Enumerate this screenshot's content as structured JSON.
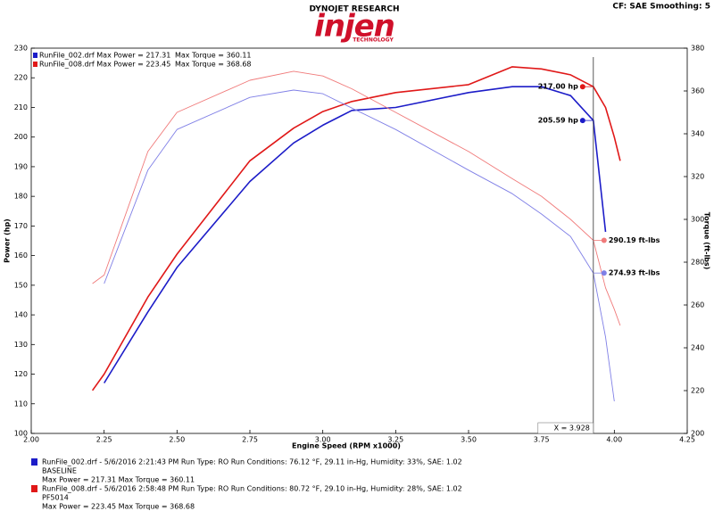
{
  "header": {
    "brand": "DYNOJET RESEARCH",
    "logo": "injen",
    "logo_sub": "TECHNOLOGY",
    "settings": "CF: SAE  Smoothing: 5"
  },
  "chart_data": {
    "type": "line",
    "xlabel": "Engine Speed (RPM x1000)",
    "ylabel": "Power (hp)",
    "y2label": "Torque (ft-lbs)",
    "x": [
      2.21,
      2.25,
      2.4,
      2.5,
      2.75,
      2.9,
      3.0,
      3.1,
      3.25,
      3.5,
      3.65,
      3.75,
      3.85,
      3.928,
      3.97,
      4.0,
      4.02
    ],
    "series": [
      {
        "color": "#1c1cc8",
        "width": 1.6,
        "axis": "y",
        "cursor_label": "205.59 hp",
        "values": [
          null,
          117,
          141,
          156,
          185,
          198,
          204,
          209,
          210,
          215,
          217,
          217,
          214,
          205.59,
          168,
          null,
          null
        ]
      },
      {
        "color": "#e01818",
        "width": 1.6,
        "axis": "y",
        "cursor_label": "217.00 hp",
        "values": [
          114.5,
          120,
          146,
          160.5,
          192,
          203,
          208.6,
          212,
          215,
          217.7,
          223.7,
          223,
          221,
          217,
          210,
          200,
          192
        ]
      },
      {
        "color": "#7f7fe6",
        "width": 0.9,
        "axis": "y2",
        "cursor_label": "274.93 ft-lbs",
        "values": [
          null,
          270,
          323,
          342,
          357,
          360.4,
          358.7,
          352,
          342,
          323,
          312,
          302.5,
          292,
          274.93,
          245,
          215,
          null
        ]
      },
      {
        "color": "#f07a7a",
        "width": 0.9,
        "axis": "y2",
        "cursor_label": "290.19 ft-lbs",
        "values": [
          270,
          274,
          331.7,
          350,
          365,
          369.2,
          367,
          361,
          350,
          331.7,
          319,
          310.8,
          300,
          290.19,
          268,
          258,
          250.4
        ]
      }
    ],
    "cursor_label": "X = 3.928",
    "xlim": [
      2.0,
      4.25
    ],
    "xticks": [
      {
        "value": 2.0,
        "label": "2.00"
      },
      {
        "value": 2.25,
        "label": "2.25"
      },
      {
        "value": 2.5,
        "label": "2.50"
      },
      {
        "value": 2.75,
        "label": "2.75"
      },
      {
        "value": 3.0,
        "label": "3.00"
      },
      {
        "value": 3.25,
        "label": "3.25"
      },
      {
        "value": 3.5,
        "label": "3.50"
      },
      {
        "value": 3.75,
        "label": "3.75"
      },
      {
        "value": 4.0,
        "label": "4.00"
      },
      {
        "value": 4.25,
        "label": "4.25"
      }
    ],
    "ylim": [
      100,
      230
    ],
    "yticks": [
      100,
      110,
      120,
      130,
      140,
      150,
      160,
      170,
      180,
      190,
      200,
      210,
      220,
      230
    ],
    "y2lim": [
      200,
      380
    ],
    "y2ticks": [
      200,
      220,
      240,
      260,
      280,
      300,
      320,
      340,
      360,
      380
    ],
    "legend": [
      {
        "color": "#1c1cc8",
        "power": "RunFile_002.drf Max Power = 217.31",
        "torque": "Max Torque = 360.11"
      },
      {
        "color": "#e01818",
        "power": "RunFile_008.drf Max Power = 223.45",
        "torque": "Max Torque = 368.68"
      }
    ]
  },
  "runs": [
    {
      "color": "#1c1cc8",
      "lines": [
        "RunFile_002.drf - 5/6/2016 2:21:43 PM  Run Type: RO  Run Conditions: 76.12 °F, 29.11 in-Hg,  Humidity:  33%, SAE: 1.02",
        "BASELINE",
        "Max Power = 217.31  Max Torque = 360.11"
      ]
    },
    {
      "color": "#e01818",
      "lines": [
        "RunFile_008.drf - 5/6/2016 2:58:48 PM  Run Type: RO  Run Conditions: 80.72 °F, 29.10 in-Hg,  Humidity:  28%, SAE: 1.02",
        "PF5014",
        "Max Power = 223.45  Max Torque = 368.68"
      ]
    }
  ]
}
